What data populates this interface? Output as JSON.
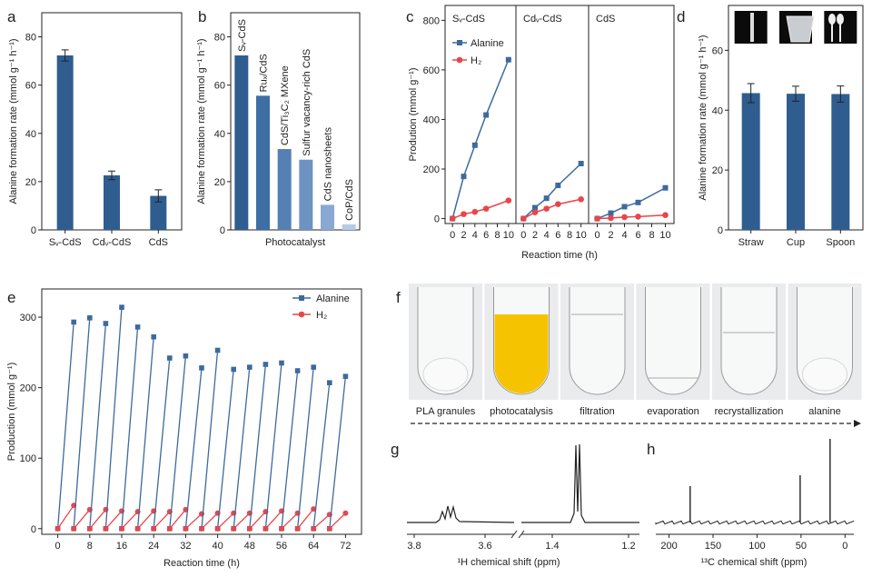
{
  "colors": {
    "blue": "#3d6a9c",
    "red": "#e8464a",
    "bar_dark": "#2f5d8f",
    "bar_mid": "#5a82b3",
    "bar_light": "#9cbbe0"
  },
  "chart_data": [
    {
      "panel": "a",
      "type": "bar",
      "categories": [
        "Sᵥ-CdS",
        "Cdᵥ-CdS",
        "CdS"
      ],
      "values": [
        72.3,
        22.6,
        14.1
      ],
      "errors": [
        2.3,
        1.8,
        2.5
      ],
      "ylabel": "Alanine formation rate (mmol g⁻¹ h⁻¹)",
      "ylim": [
        0,
        90
      ],
      "yticks": [
        0,
        20,
        40,
        60,
        80
      ]
    },
    {
      "panel": "b",
      "type": "bar",
      "categories": [
        "Sᵥ-CdS",
        "Ruₓ/CdS",
        "CdS/Ti₃C₂ MXene",
        "Sulfur vacancy-rich CdS",
        "CdS nanosheets",
        "CoP/CdS"
      ],
      "values": [
        72.3,
        55.6,
        33.5,
        29.1,
        10.4,
        2.3
      ],
      "xlabel": "Photocatalyst",
      "ylabel": "Alanine formation rate (mmol g⁻¹ h⁻¹)",
      "ylim": [
        0,
        90
      ],
      "yticks": [
        0,
        20,
        40,
        60,
        80
      ]
    },
    {
      "panel": "c",
      "type": "line",
      "subplots": [
        {
          "title": "Sᵥ-CdS",
          "x": [
            0,
            2,
            4,
            6,
            8,
            10
          ],
          "alanine": [
            0,
            170,
            296,
            418,
            null,
            641
          ],
          "h2": [
            0,
            18,
            27,
            40,
            null,
            73
          ]
        },
        {
          "title": "Cdᵥ-CdS",
          "x": [
            0,
            2,
            4,
            6,
            8,
            10
          ],
          "alanine": [
            0,
            44,
            82,
            134,
            null,
            222
          ],
          "h2": [
            0,
            25,
            40,
            58,
            null,
            78
          ]
        },
        {
          "title": "CdS",
          "x": [
            0,
            2,
            4,
            6,
            8,
            10
          ],
          "alanine": [
            0,
            22,
            48,
            65,
            null,
            124
          ],
          "h2": [
            0,
            2,
            6,
            8,
            null,
            14
          ]
        }
      ],
      "xticks": [
        0,
        2,
        4,
        6,
        8,
        10
      ],
      "legend": [
        "Alanine",
        "H₂"
      ],
      "xlabel": "Reaction time (h)",
      "ylabel": "Prodution (mmol g⁻¹)",
      "ylim": [
        -20,
        860
      ],
      "yticks": [
        0,
        200,
        400,
        600,
        800
      ]
    },
    {
      "panel": "d",
      "type": "bar",
      "categories": [
        "Straw",
        "Cup",
        "Spoon"
      ],
      "values": [
        45.7,
        45.5,
        45.4
      ],
      "errors": [
        3.2,
        2.5,
        2.7
      ],
      "ylabel": "Alanine formation rate (mmol g⁻¹ h⁻¹)",
      "ylim": [
        0,
        75
      ],
      "yticks": [
        0,
        20,
        40,
        60
      ]
    },
    {
      "panel": "e",
      "type": "line",
      "cycles": [
        {
          "start": 0,
          "end": 4,
          "alanine": 293,
          "h2": 33
        },
        {
          "start": 4,
          "end": 8,
          "alanine": 299,
          "h2": 27
        },
        {
          "start": 8,
          "end": 12,
          "alanine": 291,
          "h2": 27
        },
        {
          "start": 12,
          "end": 16,
          "alanine": 314,
          "h2": 25
        },
        {
          "start": 16,
          "end": 20,
          "alanine": 286,
          "h2": 24
        },
        {
          "start": 20,
          "end": 24,
          "alanine": 272,
          "h2": 25
        },
        {
          "start": 24,
          "end": 28,
          "alanine": 242,
          "h2": 24
        },
        {
          "start": 28,
          "end": 32,
          "alanine": 245,
          "h2": 27
        },
        {
          "start": 32,
          "end": 36,
          "alanine": 228,
          "h2": 21
        },
        {
          "start": 36,
          "end": 40,
          "alanine": 253,
          "h2": 22
        },
        {
          "start": 40,
          "end": 44,
          "alanine": 226,
          "h2": 22
        },
        {
          "start": 44,
          "end": 48,
          "alanine": 229,
          "h2": 22
        },
        {
          "start": 48,
          "end": 52,
          "alanine": 233,
          "h2": 24
        },
        {
          "start": 52,
          "end": 56,
          "alanine": 235,
          "h2": 25
        },
        {
          "start": 56,
          "end": 60,
          "alanine": 224,
          "h2": 22
        },
        {
          "start": 60,
          "end": 64,
          "alanine": 229,
          "h2": 28
        },
        {
          "start": 64,
          "end": 68,
          "alanine": 207,
          "h2": 20
        },
        {
          "start": 68,
          "end": 72,
          "alanine": 216,
          "h2": 22
        }
      ],
      "legend": [
        "Alanine",
        "H₂"
      ],
      "xlabel": "Reaction time (h)",
      "ylabel": "Production (mmol g⁻¹)",
      "xlim": [
        -4,
        76
      ],
      "xticks": [
        0,
        8,
        16,
        24,
        32,
        40,
        48,
        56,
        64,
        72
      ],
      "ylim": [
        -8,
        340
      ],
      "yticks": [
        0,
        100,
        200,
        300
      ]
    },
    {
      "panel": "f",
      "type": "photo_sequence",
      "steps": [
        "PLA granules",
        "photocatalysis",
        "filtration",
        "evaporation",
        "recrystallization",
        "alanine"
      ]
    },
    {
      "panel": "g",
      "type": "spectrum",
      "xlabel": "¹H chemical shift (ppm)",
      "xticks": [
        "3.8",
        "3.6",
        "1.4",
        "1.2"
      ],
      "peaks": [
        3.72,
        1.38
      ]
    },
    {
      "panel": "h",
      "type": "spectrum",
      "xlabel": "¹³C chemical shift (ppm)",
      "xticks": [
        "200",
        "150",
        "100",
        "50",
        "0"
      ],
      "peaks": [
        176,
        51,
        17
      ]
    }
  ],
  "panel_letters": [
    "a",
    "b",
    "c",
    "d",
    "e",
    "f",
    "g",
    "h"
  ],
  "photo_icons": [
    "straw-photo",
    "cup-photo",
    "spoon-photo"
  ]
}
